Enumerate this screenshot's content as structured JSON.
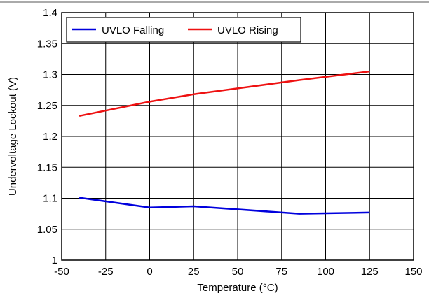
{
  "chart_data": {
    "type": "line",
    "title": "",
    "xlabel": "Temperature (°C)",
    "ylabel": "Undervoltage Lockout (V)",
    "xlim": [
      -50,
      150
    ],
    "ylim": [
      1,
      1.4
    ],
    "x_ticks": [
      -50,
      -25,
      0,
      25,
      50,
      75,
      100,
      125,
      150
    ],
    "x_tick_labels": [
      "-50",
      "-25",
      "0",
      "25",
      "50",
      "75",
      "100",
      "125",
      "150"
    ],
    "y_ticks": [
      1,
      1.05,
      1.1,
      1.15,
      1.2,
      1.25,
      1.3,
      1.35,
      1.4
    ],
    "y_tick_labels": [
      "1",
      "1.05",
      "1.1",
      "1.15",
      "1.2",
      "1.25",
      "1.3",
      "1.35",
      "1.4"
    ],
    "grid": true,
    "legend_position": "top-left",
    "series": [
      {
        "name": "UVLO Falling",
        "color": "#0000dd",
        "x": [
          -40,
          0,
          25,
          85,
          125
        ],
        "y": [
          1.101,
          1.085,
          1.087,
          1.075,
          1.077
        ]
      },
      {
        "name": "UVLO Rising",
        "color": "#ee1111",
        "x": [
          -40,
          0,
          25,
          85,
          125
        ],
        "y": [
          1.233,
          1.256,
          1.268,
          1.291,
          1.305
        ]
      }
    ]
  }
}
